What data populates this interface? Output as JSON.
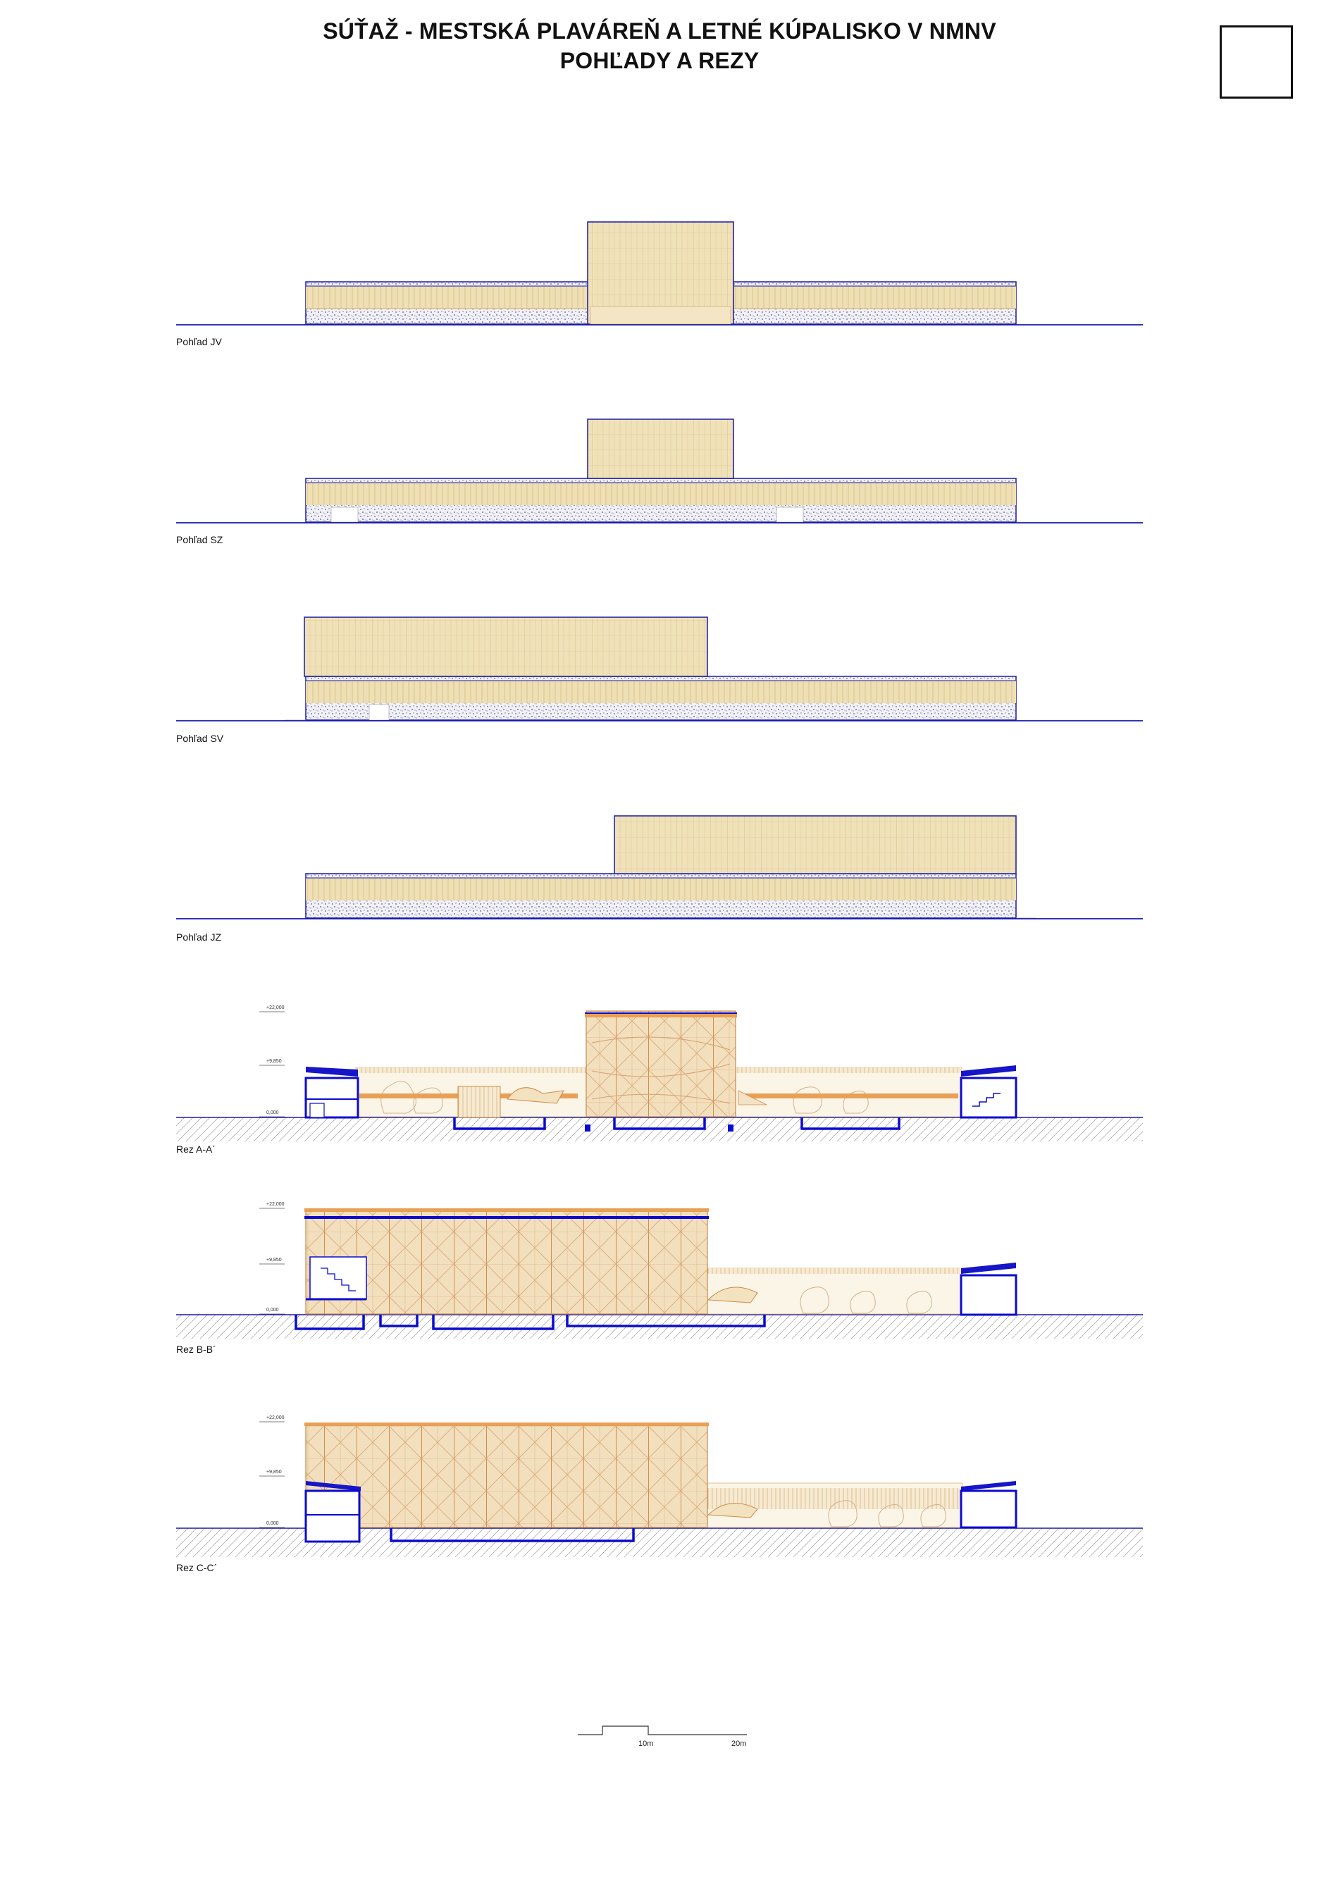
{
  "sheet": {
    "title_line1": "SÚŤAŽ - MESTSKÁ PLAVÁREŇ A LETNÉ KÚPALISKO V NMNV",
    "title_line2": "POHĽADY A REZY"
  },
  "drawings": [
    {
      "label": "Pohľad JV"
    },
    {
      "label": "Pohľad SZ"
    },
    {
      "label": "Pohľad SV"
    },
    {
      "label": "Pohľad JZ"
    },
    {
      "label": "Rez A-A´",
      "levels": [
        "+22,000",
        "+9,850",
        "0,000"
      ]
    },
    {
      "label": "Rez B-B´",
      "levels": [
        "+22,000",
        "+9,850",
        "0,000"
      ]
    },
    {
      "label": "Rez C-C´",
      "levels": [
        "+22,000",
        "+9,850",
        "0,000"
      ]
    }
  ],
  "scale_bar": {
    "mark1": "10m",
    "mark2": "20m"
  },
  "colors": {
    "line": "#1a1aa8",
    "facade": "#eedfb4",
    "timber": "#e3a860",
    "cut": "#0b0bd0"
  }
}
